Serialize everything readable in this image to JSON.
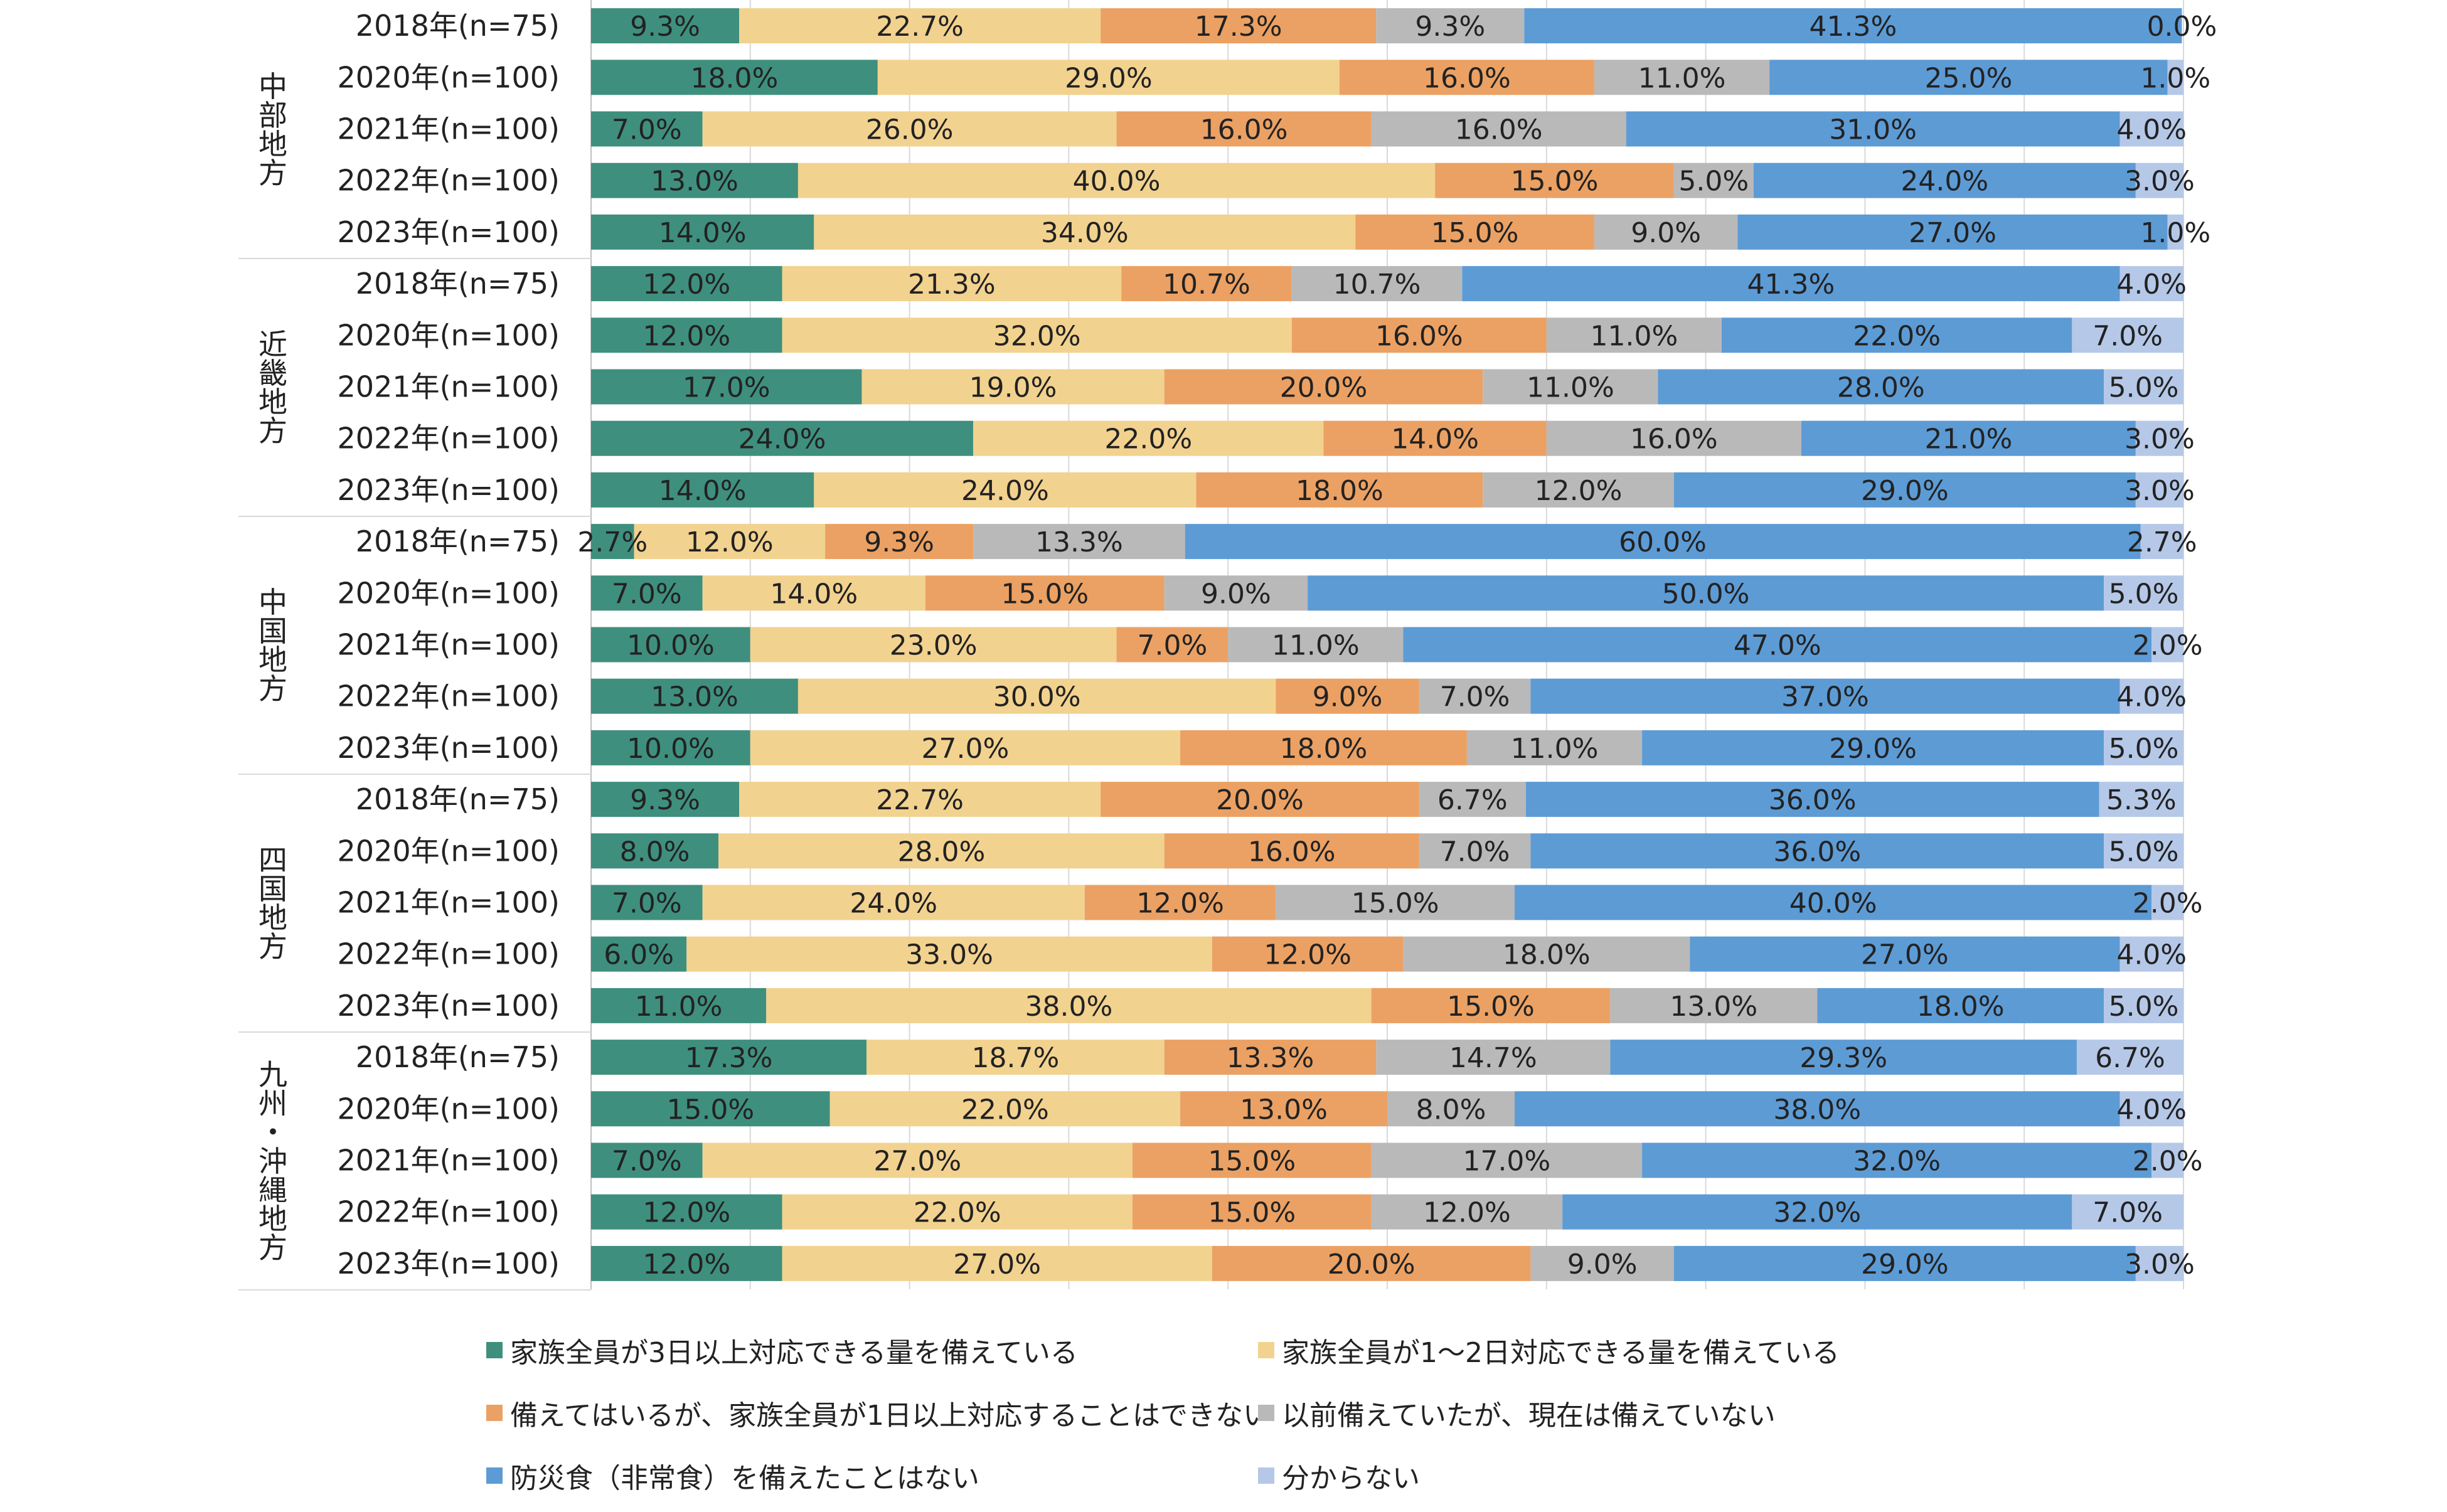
{
  "chart_data": {
    "type": "bar",
    "orientation": "horizontal",
    "stacked": "100%",
    "value_format": "percent-1dp",
    "xlim": [
      0,
      100
    ],
    "grid": true,
    "legend_position": "bottom",
    "colors": [
      "#3f8f7e",
      "#f2d28f",
      "#eba163",
      "#b9b9b9",
      "#5d9bd5",
      "#b5c8e8"
    ],
    "series_names": [
      "家族全員が3日以上対応できる量を備えている",
      "家族全員が1～2日対応できる量を備えている",
      "備えてはいるが、家族全員が1日以上対応することはできない",
      "以前備えていたが、現在は備えていない",
      "防災食（非常食）を備えたことはない",
      "分からない"
    ],
    "groups": [
      {
        "name": "中部地方",
        "rows": [
          {
            "label": "2018年(n=75)",
            "values": [
              9.3,
              22.7,
              17.3,
              9.3,
              41.3,
              0.0
            ]
          },
          {
            "label": "2020年(n=100)",
            "values": [
              18.0,
              29.0,
              16.0,
              11.0,
              25.0,
              1.0
            ]
          },
          {
            "label": "2021年(n=100)",
            "values": [
              7.0,
              26.0,
              16.0,
              16.0,
              31.0,
              4.0
            ]
          },
          {
            "label": "2022年(n=100)",
            "values": [
              13.0,
              40.0,
              15.0,
              5.0,
              24.0,
              3.0
            ]
          },
          {
            "label": "2023年(n=100)",
            "values": [
              14.0,
              34.0,
              15.0,
              9.0,
              27.0,
              1.0
            ]
          }
        ]
      },
      {
        "name": "近畿地方",
        "rows": [
          {
            "label": "2018年(n=75)",
            "values": [
              12.0,
              21.3,
              10.7,
              10.7,
              41.3,
              4.0
            ]
          },
          {
            "label": "2020年(n=100)",
            "values": [
              12.0,
              32.0,
              16.0,
              11.0,
              22.0,
              7.0
            ]
          },
          {
            "label": "2021年(n=100)",
            "values": [
              17.0,
              19.0,
              20.0,
              11.0,
              28.0,
              5.0
            ]
          },
          {
            "label": "2022年(n=100)",
            "values": [
              24.0,
              22.0,
              14.0,
              16.0,
              21.0,
              3.0
            ]
          },
          {
            "label": "2023年(n=100)",
            "values": [
              14.0,
              24.0,
              18.0,
              12.0,
              29.0,
              3.0
            ]
          }
        ]
      },
      {
        "name": "中国地方",
        "rows": [
          {
            "label": "2018年(n=75)",
            "values": [
              2.7,
              12.0,
              9.3,
              13.3,
              60.0,
              2.7
            ]
          },
          {
            "label": "2020年(n=100)",
            "values": [
              7.0,
              14.0,
              15.0,
              9.0,
              50.0,
              5.0
            ]
          },
          {
            "label": "2021年(n=100)",
            "values": [
              10.0,
              23.0,
              7.0,
              11.0,
              47.0,
              2.0
            ]
          },
          {
            "label": "2022年(n=100)",
            "values": [
              13.0,
              30.0,
              9.0,
              7.0,
              37.0,
              4.0
            ]
          },
          {
            "label": "2023年(n=100)",
            "values": [
              10.0,
              27.0,
              18.0,
              11.0,
              29.0,
              5.0
            ]
          }
        ]
      },
      {
        "name": "四国地方",
        "rows": [
          {
            "label": "2018年(n=75)",
            "values": [
              9.3,
              22.7,
              20.0,
              6.7,
              36.0,
              5.3
            ]
          },
          {
            "label": "2020年(n=100)",
            "values": [
              8.0,
              28.0,
              16.0,
              7.0,
              36.0,
              5.0
            ]
          },
          {
            "label": "2021年(n=100)",
            "values": [
              7.0,
              24.0,
              12.0,
              15.0,
              40.0,
              2.0
            ]
          },
          {
            "label": "2022年(n=100)",
            "values": [
              6.0,
              33.0,
              12.0,
              18.0,
              27.0,
              4.0
            ]
          },
          {
            "label": "2023年(n=100)",
            "values": [
              11.0,
              38.0,
              15.0,
              13.0,
              18.0,
              5.0
            ]
          }
        ]
      },
      {
        "name": "九州・沖縄地方",
        "rows": [
          {
            "label": "2018年(n=75)",
            "values": [
              17.3,
              18.7,
              13.3,
              14.7,
              29.3,
              6.7
            ]
          },
          {
            "label": "2020年(n=100)",
            "values": [
              15.0,
              22.0,
              13.0,
              8.0,
              38.0,
              4.0
            ]
          },
          {
            "label": "2021年(n=100)",
            "values": [
              7.0,
              27.0,
              15.0,
              17.0,
              32.0,
              2.0
            ]
          },
          {
            "label": "2022年(n=100)",
            "values": [
              12.0,
              22.0,
              15.0,
              12.0,
              32.0,
              7.0
            ]
          },
          {
            "label": "2023年(n=100)",
            "values": [
              12.0,
              27.0,
              20.0,
              9.0,
              29.0,
              3.0
            ]
          }
        ]
      }
    ]
  }
}
